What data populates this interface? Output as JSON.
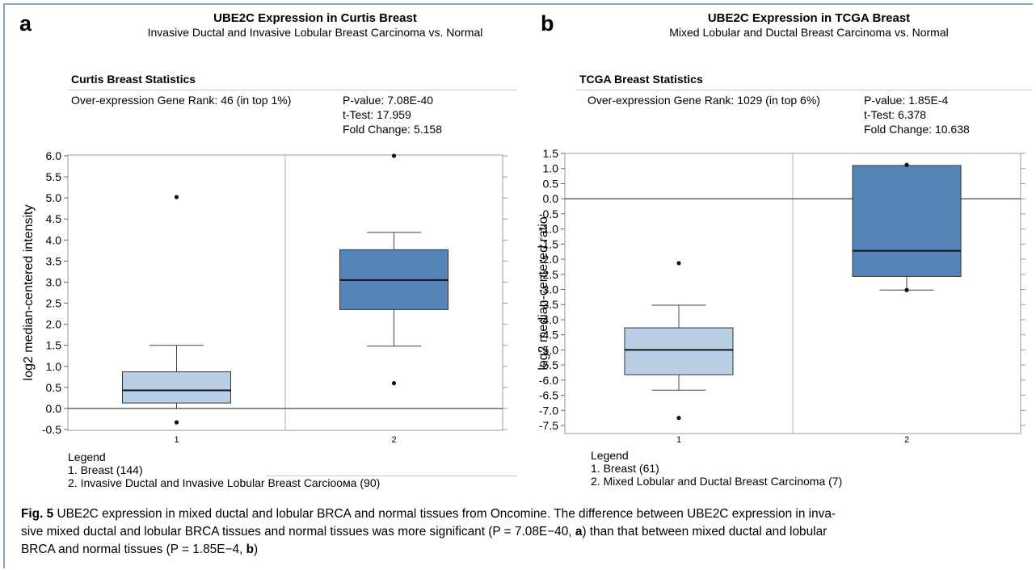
{
  "panels": [
    {
      "letter": "a",
      "title": "UBE2C Expression in Curtis Breast",
      "subtitle": "Invasive Ductal and Invasive Lobular Breast Carcinoma vs. Normal",
      "stats_title": "Curtis Breast Statistics",
      "rank": "Over-expression Gene Rank: 46 (in top 1%)",
      "pvalue": "P-value: 7.08E-40",
      "ttest": "t-Test: 17.959",
      "fold": "Fold Change: 5.158",
      "legend_title": "Legend",
      "legend_items": [
        "1. Breast (144)",
        "2. Invasive Ductal and Invasive Lobular Breast Carcioома (90)"
      ]
    },
    {
      "letter": "b",
      "title": "UBE2C Expression in TCGA Breast",
      "subtitle": "Mixed Lobular and Ductal Breast Carcinoma vs. Normal",
      "stats_title": "TCGA Breast Statistics",
      "rank": "Over-expression Gene Rank: 1029 (in top 6%)",
      "pvalue": "P-value: 1.85E-4",
      "ttest": "t-Test: 6.378",
      "fold": "Fold Change: 10.638",
      "legend_title": "Legend",
      "legend_items": [
        "1. Breast (61)",
        "2. Mixed Lobular and Ductal Breast Carcinoma (7)"
      ]
    }
  ],
  "chart_data": [
    {
      "type": "box",
      "ylabel": "log2 median-centered intensity",
      "ylim": [
        -0.75,
        6.0
      ],
      "yticks": [
        6.0,
        5.5,
        5.0,
        4.5,
        4.0,
        3.5,
        3.0,
        2.5,
        2.0,
        1.5,
        1.0,
        0.5,
        0.0,
        -0.5
      ],
      "ytick_labels": [
        "6.0",
        "5.5",
        "5.0",
        "4.5",
        "4.0",
        "3.5",
        "3.0",
        "2.5",
        "2.0",
        "1.5",
        "1.0",
        "0.5",
        "0.0",
        "-0.5"
      ],
      "categories": [
        "1",
        "2"
      ],
      "boxes": [
        {
          "category": "1",
          "whisker_low": 0.0,
          "q1": 0.13,
          "median": 0.43,
          "q3": 0.87,
          "whisker_high": 1.5,
          "outliers": [
            5.02,
            -0.33
          ],
          "color": "#b8cfe6"
        },
        {
          "category": "2",
          "whisker_low": 1.48,
          "q1": 2.35,
          "median": 3.05,
          "q3": 3.77,
          "whisker_high": 4.18,
          "outliers": [
            6.0,
            0.6
          ],
          "color": "#5585b8"
        }
      ],
      "reference_line": 0.0
    },
    {
      "type": "box",
      "ylabel": "log2 median-centered ratio",
      "ylim": [
        -7.85,
        1.5
      ],
      "yticks": [
        1.5,
        1.0,
        0.5,
        0.0,
        -0.5,
        -1.0,
        -1.5,
        -2.0,
        -2.5,
        -3.0,
        -3.5,
        -4.0,
        -4.5,
        -5.0,
        -5.5,
        -6.0,
        -6.5,
        -7.0,
        -7.5
      ],
      "ytick_labels": [
        "1.5",
        "1.0",
        "0.5",
        "0.0",
        "-0.5",
        "-1.0",
        "-1.5",
        "-2.0",
        "-2.5",
        "-3.0",
        "-3.5",
        "-4.0",
        "-4.5",
        "-5.0",
        "-5.5",
        "-6.0",
        "-6.5",
        "-7.0",
        "-7.5"
      ],
      "categories": [
        "1",
        "2"
      ],
      "boxes": [
        {
          "category": "1",
          "whisker_low": -6.33,
          "q1": -5.82,
          "median": -5.0,
          "q3": -4.27,
          "whisker_high": -3.52,
          "outliers": [
            -2.13,
            -7.25
          ],
          "color": "#b8cfe6"
        },
        {
          "category": "2",
          "whisker_low": -3.02,
          "q1": -2.57,
          "median": -1.72,
          "q3": 1.1,
          "whisker_high": 1.1,
          "outliers": [
            1.12,
            -3.02
          ],
          "color": "#5585b8"
        }
      ],
      "reference_line": 0.0
    }
  ],
  "caption": {
    "fig_label": "Fig. 5",
    "text_1": "  UBE2C expression in mixed ductal and lobular BRCA and normal tissues from Oncomine. The difference between UBE2C expression in inva-",
    "text_2": "sive mixed ductal and lobular BRCA tissues and normal tissues was more significant (P = 7.08E−40, ",
    "ref_a": "a",
    "text_3": ") than that between mixed ductal and lobular",
    "text_4": "BRCA and normal tissues (P = 1.85E−4, ",
    "ref_b": "b",
    "text_5": ")"
  }
}
